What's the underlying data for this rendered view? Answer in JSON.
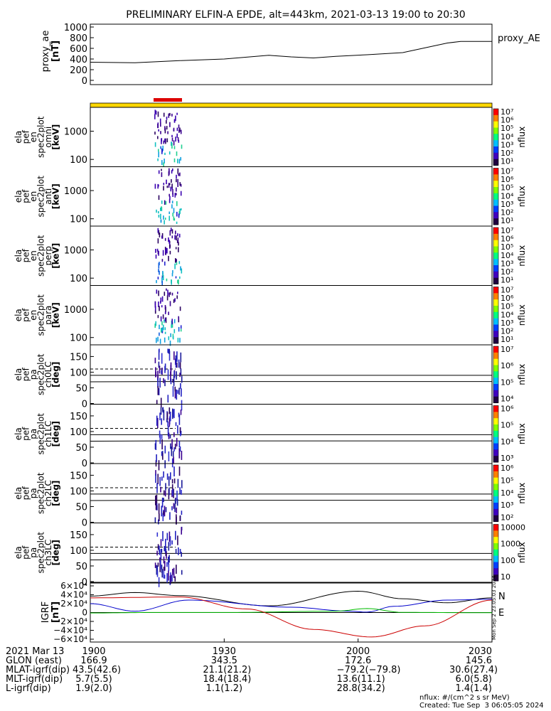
{
  "title": "PRELIMINARY ELFIN-A EPDE, alt=443km, 2021-03-13 19:00 to 20:30",
  "ae_panel": {
    "ylabel": "proxy_ae",
    "units": "[nT]",
    "legend": "proxy_AE",
    "yticks": [
      "1000",
      "800",
      "600",
      "400",
      "200",
      "0"
    ]
  },
  "spec_panels": [
    {
      "labels": [
        "ela",
        "pef",
        "en",
        "spec2plot",
        "omni",
        "[keV]"
      ],
      "yticks": [
        "1000",
        "100"
      ]
    },
    {
      "labels": [
        "ela",
        "pef",
        "en",
        "spec2plot",
        "anti",
        "[keV]"
      ],
      "yticks": [
        "1000",
        "100"
      ]
    },
    {
      "labels": [
        "ela",
        "pef",
        "en",
        "spec2plot",
        "perp",
        "[keV]"
      ],
      "yticks": [
        "1000",
        "100"
      ]
    },
    {
      "labels": [
        "ela",
        "pef",
        "en",
        "spec2plot",
        "para",
        "[keV]"
      ],
      "yticks": [
        "1000",
        "100"
      ]
    }
  ],
  "pa_panels": [
    {
      "labels": [
        "ela",
        "pef",
        "pa",
        "spec2plot",
        "ch0LC",
        "[deg]"
      ],
      "yticks": [
        "150",
        "100",
        "50",
        "0"
      ]
    },
    {
      "labels": [
        "ela",
        "pef",
        "pa",
        "spec2plot",
        "ch1LC",
        "[deg]"
      ],
      "yticks": [
        "150",
        "100",
        "50",
        "0"
      ]
    },
    {
      "labels": [
        "ela",
        "pef",
        "pa",
        "spec2plot",
        "ch2LC",
        "[deg]"
      ],
      "yticks": [
        "150",
        "100",
        "50",
        "0"
      ]
    },
    {
      "labels": [
        "ela",
        "pef",
        "pa",
        "spec2plot",
        "ch3LC",
        "[deg]"
      ],
      "yticks": [
        "150",
        "100",
        "50",
        "0"
      ]
    }
  ],
  "colorbars": [
    {
      "title": "nflux",
      "ticks": [
        "10⁷",
        "10⁶",
        "10⁵",
        "10⁴",
        "10³",
        "10²",
        "10¹"
      ]
    },
    {
      "title": "nflux",
      "ticks": [
        "10⁷",
        "10⁶",
        "10⁵",
        "10⁴",
        "10³",
        "10²",
        "10¹"
      ]
    },
    {
      "title": "nflux",
      "ticks": [
        "10⁷",
        "10⁶",
        "10⁵",
        "10⁴",
        "10³",
        "10²",
        "10¹"
      ]
    },
    {
      "title": "nflux",
      "ticks": [
        "10⁷",
        "10⁶",
        "10⁵",
        "10⁴",
        "10³",
        "10²",
        "10¹"
      ]
    },
    {
      "title": "nflux",
      "ticks": [
        "10⁷",
        "10⁶",
        "10⁵",
        "10⁴"
      ]
    },
    {
      "title": "nflux",
      "ticks": [
        "10⁶",
        "10⁵",
        "10⁴",
        "10³"
      ]
    },
    {
      "title": "nflux",
      "ticks": [
        "10⁶",
        "10⁵",
        "10⁴",
        "10³",
        "10²"
      ]
    },
    {
      "title": "nflux",
      "ticks": [
        "10000",
        "1000",
        "100",
        "10"
      ]
    }
  ],
  "igrf_panel": {
    "ylabel": "IGRF",
    "units": "[nT]",
    "yticks": [
      "6×10⁴",
      "4×10⁴",
      "2×10⁴",
      "0",
      "−2×10⁴",
      "−4×10⁴",
      "−6×10⁴"
    ],
    "legend": [
      "N",
      "E"
    ],
    "stamp": "Mon Sep  2 23:05:03 2024"
  },
  "x_ticks": [
    "1900",
    "1930",
    "2000",
    "2030"
  ],
  "ephemeris": {
    "rows": [
      {
        "label": "2021 Mar 13",
        "values": [
          "1900",
          "1930",
          "2000",
          "2030"
        ]
      },
      {
        "label": "GLON (east)",
        "values": [
          "166.9",
          "343.5",
          "172.6",
          "145.6"
        ]
      },
      {
        "label": "MLAT-igrf(dip)",
        "values": [
          "43.5(42.6)",
          "21.1(21.2)",
          "−79.2(−79.8)",
          "30.6(27.4)"
        ]
      },
      {
        "label": "MLT-igrf(dip)",
        "values": [
          "5.7(5.5)",
          "18.4(18.4)",
          "13.6(11.1)",
          "6.0(5.8)"
        ]
      },
      {
        "label": "L-igrf(dip)",
        "values": [
          "1.9(2.0)",
          "1.1(1.2)",
          "28.8(34.2)",
          "1.4(1.4)"
        ]
      }
    ]
  },
  "footer": {
    "units": "nflux: #/(cm^2 s sr MeV)",
    "created": "Created: Tue Sep  3 06:05:05 2024"
  },
  "colors": {
    "science_bar": "#ffd700",
    "science_bar_edge": "#000000",
    "science_zone": "#dd0000",
    "igrf_n": "#0000cc",
    "igrf_e": "#00bb00",
    "igrf_z": "#cc0000",
    "igrf_total": "#000000"
  },
  "chart_data": [
    {
      "type": "line",
      "title": "proxy_AE",
      "ylabel": "proxy_ae [nT]",
      "ylim": [
        0,
        1000
      ],
      "x_range": [
        "19:00",
        "20:30"
      ],
      "series": [
        {
          "name": "proxy_AE",
          "x_min": [
            0,
            10,
            20,
            30,
            40,
            45,
            50,
            55,
            62,
            70,
            80,
            83,
            90
          ],
          "values": [
            340,
            330,
            370,
            400,
            470,
            440,
            420,
            450,
            480,
            520,
            700,
            730,
            730
          ]
        }
      ]
    },
    {
      "type": "line",
      "title": "IGRF [nT]",
      "ylim": [
        -60000,
        60000
      ],
      "x_range": [
        "19:00",
        "20:30"
      ],
      "series": [
        {
          "name": "",
          "x_min": [
            0,
            10,
            20,
            40,
            60,
            70,
            80,
            90
          ],
          "values": [
            37000,
            45000,
            38000,
            15000,
            48000,
            31000,
            22000,
            33000
          ]
        },
        {
          "name": "N",
          "x_min": [
            0,
            10,
            22,
            45,
            58,
            62,
            68,
            80,
            90
          ],
          "values": [
            20000,
            3000,
            28000,
            12000,
            3000,
            1000,
            14000,
            28000,
            30000
          ]
        },
        {
          "name": "E",
          "x_min": [
            0,
            15,
            30,
            55,
            62,
            70,
            90
          ],
          "values": [
            -1000,
            200,
            100,
            3000,
            9000,
            300,
            -500
          ]
        },
        {
          "name": "",
          "x_min": [
            0,
            20,
            35,
            50,
            63,
            75,
            90
          ],
          "values": [
            33000,
            35000,
            8000,
            -38000,
            -55000,
            -30000,
            28000
          ]
        }
      ]
    }
  ]
}
